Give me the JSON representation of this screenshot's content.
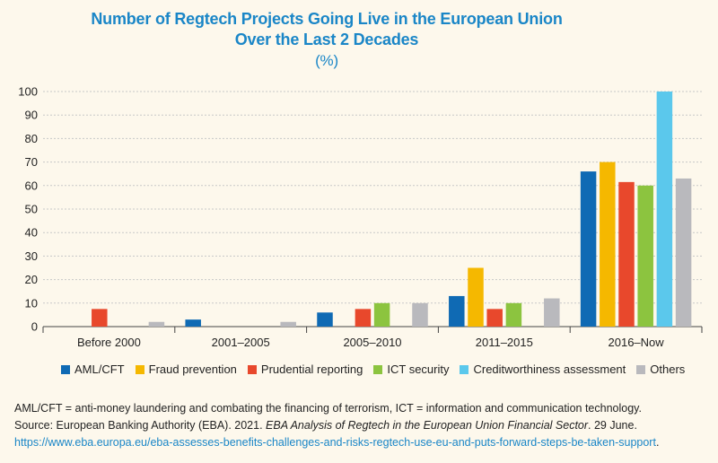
{
  "chart_data": {
    "type": "bar",
    "title_line1": "Number of Regtech Projects Going Live in the European Union",
    "title_line2": "Over the Last 2 Decades",
    "unit": "(%)",
    "categories": [
      "Before 2000",
      "2001–2005",
      "2005–2010",
      "2011–2015",
      "2016–Now"
    ],
    "ylim": [
      0,
      100
    ],
    "yticks": [
      0,
      10,
      20,
      30,
      40,
      50,
      60,
      70,
      80,
      90,
      100
    ],
    "legend_position": "bottom",
    "series": [
      {
        "name": "AML/CFT",
        "color": "#0f6ab4",
        "values": [
          0,
          3,
          6,
          13,
          66
        ]
      },
      {
        "name": "Fraud prevention",
        "color": "#f5b800",
        "values": [
          0,
          0,
          0,
          25,
          70
        ]
      },
      {
        "name": "Prudential reporting",
        "color": "#e8482c",
        "values": [
          7.5,
          0,
          7.5,
          7.5,
          61.5
        ]
      },
      {
        "name": "ICT security",
        "color": "#8cc43f",
        "values": [
          0,
          0,
          10,
          10,
          60
        ]
      },
      {
        "name": "Creditworthiness assessment",
        "color": "#5bc8ec",
        "values": [
          0,
          0,
          0,
          0,
          100
        ]
      },
      {
        "name": "Others",
        "color": "#b9b9bd",
        "values": [
          2,
          2,
          10,
          12,
          63
        ]
      }
    ]
  },
  "footnote": {
    "abbreviations": "AML/CFT = anti-money laundering and combating the financing of terrorism, ICT = information and communication technology.",
    "source_prefix": "Source: European Banking Authority (EBA). 2021. ",
    "source_title": "EBA Analysis of Regtech in the European Union Financial Sector",
    "source_suffix": ". 29 June.",
    "url": "https://www.eba.europa.eu/eba-assesses-benefits-challenges-and-risks-regtech-use-eu-and-puts-forward-steps-be-taken-support",
    "url_end": "."
  }
}
